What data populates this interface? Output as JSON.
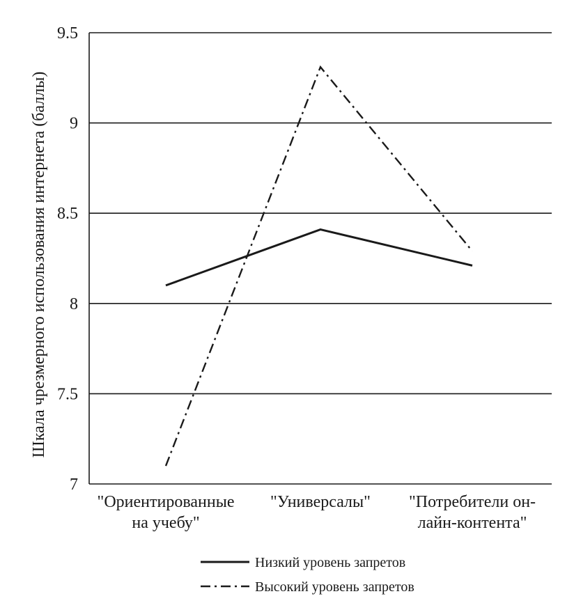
{
  "chart_data": {
    "type": "line",
    "title": "",
    "xlabel": "",
    "ylabel": "Шкала чрезмерного использования интернета (баллы)",
    "ylim": [
      7,
      9.5
    ],
    "yticks": [
      "7",
      "7.5",
      "8",
      "8.5",
      "9",
      "9.5"
    ],
    "grid": true,
    "legend_position": "bottom",
    "categories": [
      [
        "\"Ориентированные",
        "на учебу\""
      ],
      [
        "\"Универсалы\""
      ],
      [
        "\"Потребители он-",
        "лайн-контента\""
      ]
    ],
    "series": [
      {
        "name": "Низкий уровень запретов",
        "style": "solid",
        "values": [
          8.1,
          8.41,
          8.21
        ]
      },
      {
        "name": "Высокий уровень запретов",
        "style": "dash-dot",
        "values": [
          7.1,
          9.31,
          8.29
        ]
      }
    ],
    "colors": {
      "line": "#1a1a1a",
      "grid": "#1a1a1a"
    }
  }
}
